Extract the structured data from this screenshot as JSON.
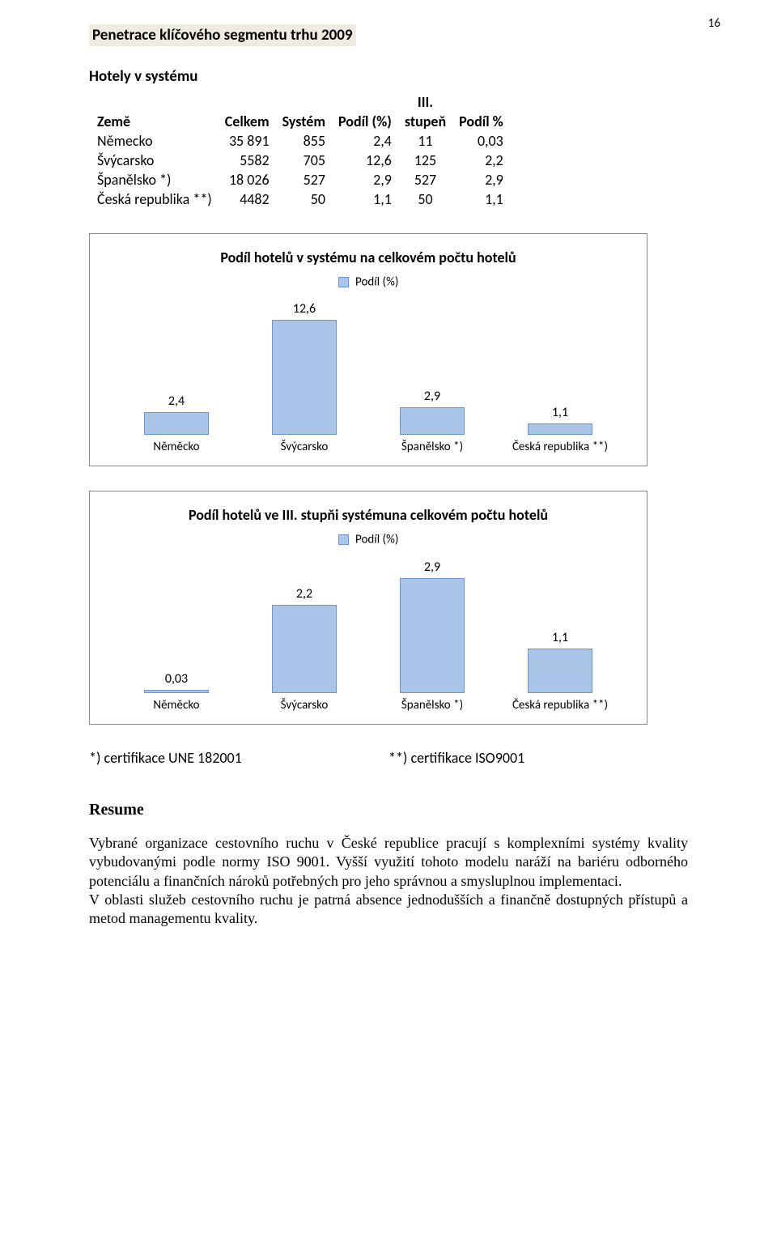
{
  "page_number": "16",
  "title": "Penetrace klíčového segmentu trhu 2009",
  "table": {
    "subtitle": "Hotely v systému",
    "header_row1": [
      "Země",
      "Celkem",
      "Systém",
      "Podíl (%)",
      "III. stupeň",
      "Podíl %"
    ],
    "header_iii": "III.",
    "header_stupen": "stupeň",
    "rows": [
      {
        "country": "Německo",
        "total": "35 891",
        "system": "855",
        "share": "2,4",
        "tier3": "11",
        "tier3_share": "0,03"
      },
      {
        "country": "Švýcarsko",
        "total": "5582",
        "system": "705",
        "share": "12,6",
        "tier3": "125",
        "tier3_share": "2,2"
      },
      {
        "country": "Španělsko *)",
        "total": "18 026",
        "system": "527",
        "share": "2,9",
        "tier3": "527",
        "tier3_share": "2,9"
      },
      {
        "country": "Česká republika **)",
        "total": "4482",
        "system": "50",
        "share": "1,1",
        "tier3": "50",
        "tier3_share": "1,1"
      }
    ]
  },
  "chart1": {
    "type": "bar",
    "title": "Podíl hotelů v systému na celkovém počtu hotelů",
    "legend_label": "Podíl (%)",
    "categories": [
      "Něměcko",
      "Švýcarsko",
      "Španělsko *)",
      "Česká republika **)"
    ],
    "value_labels": [
      "2,4",
      "12,6",
      "2,9",
      "1,1"
    ],
    "values": [
      2.4,
      12.6,
      2.9,
      1.1
    ],
    "ymax": 13.5,
    "bar_color": "#a9c6e8",
    "bar_border": "#6f94c9",
    "legend_swatch": "#a9c6e8",
    "legend_swatch_border": "#6f94c9"
  },
  "chart2": {
    "type": "bar",
    "title": "Podíl hotelů ve III. stupňi systémuna celkovém počtu hotelů",
    "legend_label": "Podíl (%)",
    "categories": [
      "Něměcko",
      "Švýcarsko",
      "Španělsko *)",
      "Česká republika **)"
    ],
    "value_labels": [
      "0,03",
      "2,2",
      "2,9",
      "1,1"
    ],
    "values": [
      0.03,
      2.2,
      2.9,
      1.1
    ],
    "ymax": 3.1,
    "bar_color": "#a9c6e8",
    "bar_border": "#6f94c9",
    "legend_swatch": "#a9c6e8",
    "legend_swatch_border": "#6f94c9"
  },
  "cert": {
    "left": "*) certifikace UNE 182001",
    "right": "**) certifikace ISO9001"
  },
  "resume": {
    "heading": "Resume",
    "paragraphs": [
      "Vybrané organizace cestovního ruchu v České republice pracují s komplexními systémy kvality vybudovanými podle normy ISO 9001. Vyšší využití tohoto modelu naráží na bariéru odborného potenciálu a finančních nároků potřebných pro jeho správnou a smysluplnou implementaci.",
      "V oblasti služeb cestovního ruchu je patrná absence jednodušších a finančně dostupných přístupů a metod managementu kvality."
    ]
  }
}
